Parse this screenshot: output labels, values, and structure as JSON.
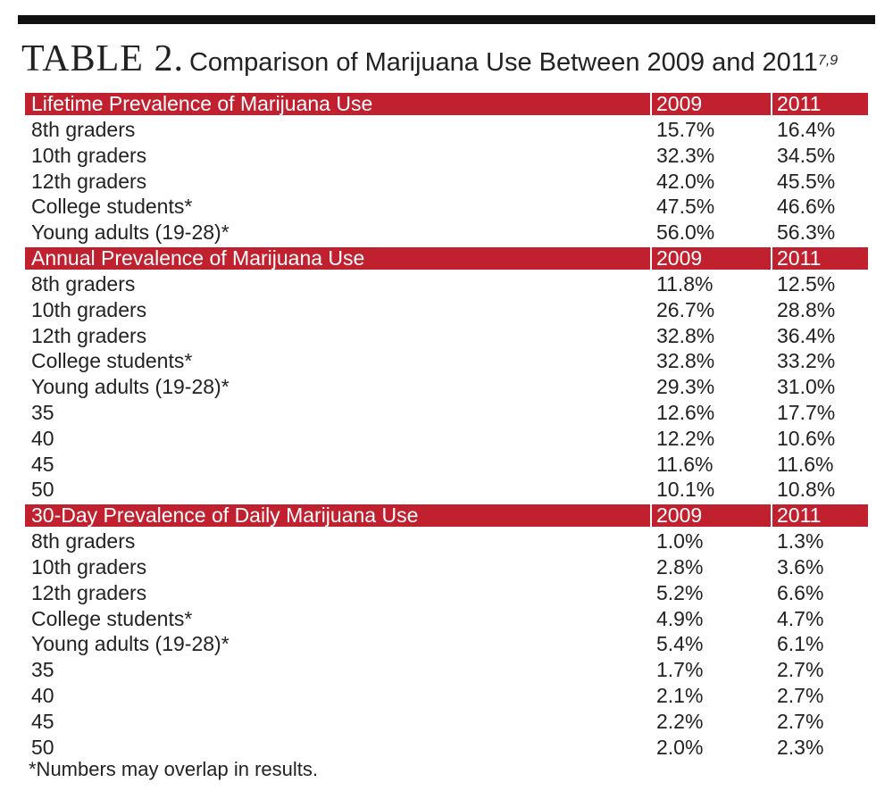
{
  "header": {
    "label": "TABLE 2.",
    "title": "Comparison of Marijuana Use Between 2009 and 2011",
    "superscript": "7,9"
  },
  "table": {
    "sections": [
      {
        "title": "Lifetime Prevalence of Marijuana Use",
        "columns": [
          "2009",
          "2011"
        ],
        "rows": [
          [
            "8th graders",
            "15.7%",
            "16.4%"
          ],
          [
            "10th graders",
            "32.3%",
            "34.5%"
          ],
          [
            "12th graders",
            "42.0%",
            "45.5%"
          ],
          [
            "College students*",
            "47.5%",
            "46.6%"
          ],
          [
            "Young adults (19-28)*",
            "56.0%",
            "56.3%"
          ]
        ]
      },
      {
        "title": "Annual Prevalence of Marijuana Use",
        "columns": [
          "2009",
          "2011"
        ],
        "rows": [
          [
            "8th graders",
            "11.8%",
            "12.5%"
          ],
          [
            "10th graders",
            "26.7%",
            "28.8%"
          ],
          [
            "12th graders",
            "32.8%",
            "36.4%"
          ],
          [
            "College students*",
            "32.8%",
            "33.2%"
          ],
          [
            "Young adults (19-28)*",
            "29.3%",
            "31.0%"
          ],
          [
            "35",
            "12.6%",
            "17.7%"
          ],
          [
            "40",
            "12.2%",
            "10.6%"
          ],
          [
            "45",
            "11.6%",
            "11.6%"
          ],
          [
            "50",
            "10.1%",
            "10.8%"
          ]
        ]
      },
      {
        "title": "30-Day Prevalence of Daily Marijuana Use",
        "columns": [
          "2009",
          "2011"
        ],
        "rows": [
          [
            "8th graders",
            "1.0%",
            "1.3%"
          ],
          [
            "10th graders",
            "2.8%",
            "3.6%"
          ],
          [
            "12th graders",
            "5.2%",
            "6.6%"
          ],
          [
            "College students*",
            "4.9%",
            "4.7%"
          ],
          [
            "Young adults (19-28)*",
            "5.4%",
            "6.1%"
          ],
          [
            "35",
            "1.7%",
            "2.7%"
          ],
          [
            "40",
            "2.1%",
            "2.7%"
          ],
          [
            "45",
            "2.2%",
            "2.7%"
          ],
          [
            "50",
            "2.0%",
            "2.3%"
          ]
        ]
      }
    ]
  },
  "footnote": "*Numbers may overlap in results."
}
